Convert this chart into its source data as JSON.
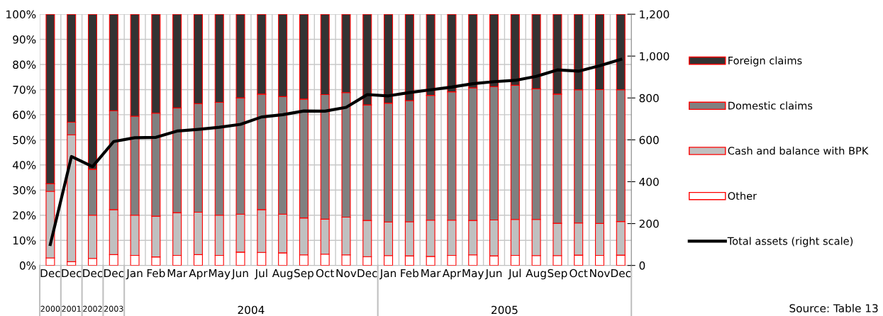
{
  "chart_data": {
    "type": "bar",
    "stacked": true,
    "categories": [
      "Dec",
      "Dec",
      "Dec",
      "Dec",
      "Jan",
      "Feb",
      "Mar",
      "Apr",
      "May",
      "Jun",
      "Jul",
      "Aug",
      "Sep",
      "Oct",
      "Nov",
      "Dec",
      "Jan",
      "Feb",
      "Mar",
      "Apr",
      "May",
      "Jun",
      "Jul",
      "Aug",
      "Sep",
      "Oct",
      "Nov",
      "Dec"
    ],
    "series": [
      {
        "name": "Other",
        "color": "#ffffff",
        "values": [
          3,
          1.5,
          2.8,
          4.3,
          4,
          3.4,
          4,
          4.3,
          4,
          5.3,
          5.2,
          5,
          4.2,
          4.5,
          4.2,
          3.5,
          3.9,
          3.8,
          3.6,
          4,
          4.2,
          3.8,
          4,
          3.9,
          3.9,
          4.1,
          4,
          4.1
        ]
      },
      {
        "name": "Cash and balance with BPK",
        "color": "#c0c0c0",
        "values": [
          26.5,
          50.5,
          17.2,
          17.9,
          16,
          16.2,
          17,
          16.9,
          16,
          15.1,
          17,
          15.4,
          14.7,
          13.9,
          15,
          14.4,
          13.4,
          13.6,
          14.4,
          14,
          13.7,
          14.3,
          14.3,
          14.4,
          12.9,
          12.8,
          12.7,
          13.4
        ]
      },
      {
        "name": "Domestic claims",
        "color": "#808080",
        "values": [
          3,
          5,
          18.3,
          39.4,
          39.4,
          41,
          41.7,
          43.2,
          44.9,
          46.3,
          46,
          46.8,
          47.3,
          49.6,
          49.6,
          46,
          47.3,
          48.2,
          49.7,
          51.1,
          52.8,
          53.1,
          53.4,
          52,
          51.4,
          53,
          53.3,
          52.4
        ]
      },
      {
        "name": "Foreign claims",
        "color": "#333333",
        "values": [
          67.5,
          43,
          61.7,
          38.4,
          40.6,
          39.4,
          37.3,
          35.6,
          35.1,
          33.3,
          31.8,
          32.8,
          33.8,
          32,
          31.2,
          36.1,
          35.4,
          34.4,
          32.3,
          30.9,
          29.3,
          28.8,
          28.3,
          29.7,
          31.8,
          30.1,
          30,
          30.1
        ]
      },
      {
        "name": "Total assets (right scale)",
        "type": "line",
        "axis": "y2",
        "color": "#000000",
        "values": [
          100,
          520,
          472,
          592,
          610,
          612,
          642,
          650,
          660,
          674,
          709,
          720,
          738,
          737,
          755,
          816,
          810,
          826,
          839,
          852,
          868,
          878,
          884,
          903,
          934,
          928,
          954,
          984
        ]
      }
    ],
    "ylim": [
      0,
      100
    ],
    "yticks": [
      {
        "value": 0,
        "label": "0%"
      },
      {
        "value": 10,
        "label": "10%"
      },
      {
        "value": 20,
        "label": "20%"
      },
      {
        "value": 30,
        "label": "30%"
      },
      {
        "value": 40,
        "label": "40%"
      },
      {
        "value": 50,
        "label": "50%"
      },
      {
        "value": 60,
        "label": "60%"
      },
      {
        "value": 70,
        "label": "70%"
      },
      {
        "value": 80,
        "label": "80%"
      },
      {
        "value": 90,
        "label": "90%"
      },
      {
        "value": 100,
        "label": "100%"
      }
    ],
    "y2lim": [
      0,
      1200
    ],
    "y2ticks": [
      0,
      200,
      400,
      600,
      800,
      {
        "value": 1000,
        "label": "1,000"
      },
      {
        "value": 1200,
        "label": "1,200"
      }
    ],
    "grid": true,
    "legend": "right",
    "marker": "none",
    "line_style": "solid",
    "annotations": [
      "2000",
      "2001",
      "2002",
      "2003",
      "2004",
      "2005",
      "Source: Table 13"
    ]
  }
}
